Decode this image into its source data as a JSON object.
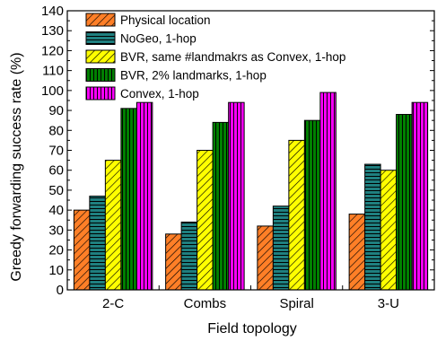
{
  "chart_data": {
    "type": "bar",
    "xlabel": "Field topology",
    "ylabel": "Greedy forwarding success rate (%)",
    "ylim": [
      0,
      140
    ],
    "yticks": [
      0,
      10,
      20,
      30,
      40,
      50,
      60,
      70,
      80,
      90,
      100,
      110,
      120,
      130,
      140
    ],
    "categories": [
      "2-C",
      "Combs",
      "Spiral",
      "3-U"
    ],
    "grid": false,
    "legend_position": "top-left",
    "series": [
      {
        "name": "Physical location",
        "values": [
          40,
          28,
          32,
          38
        ],
        "color": "#ff7f27",
        "pattern": "diag-lines"
      },
      {
        "name": "NoGeo, 1-hop",
        "values": [
          47,
          34,
          42,
          63
        ],
        "color": "#1f8080",
        "pattern": "horiz-lines"
      },
      {
        "name": "BVR, same #landmakrs as Convex, 1-hop",
        "values": [
          65,
          70,
          75,
          60
        ],
        "color": "#ffff00",
        "pattern": "diag-lines"
      },
      {
        "name": "BVR, 2% landmarks, 1-hop",
        "values": [
          91,
          84,
          85,
          88
        ],
        "color": "#008000",
        "pattern": "vert-lines"
      },
      {
        "name": "Convex, 1-hop",
        "values": [
          94,
          94,
          99,
          94
        ],
        "color": "#ff00ff",
        "pattern": "vert-lines"
      }
    ]
  }
}
